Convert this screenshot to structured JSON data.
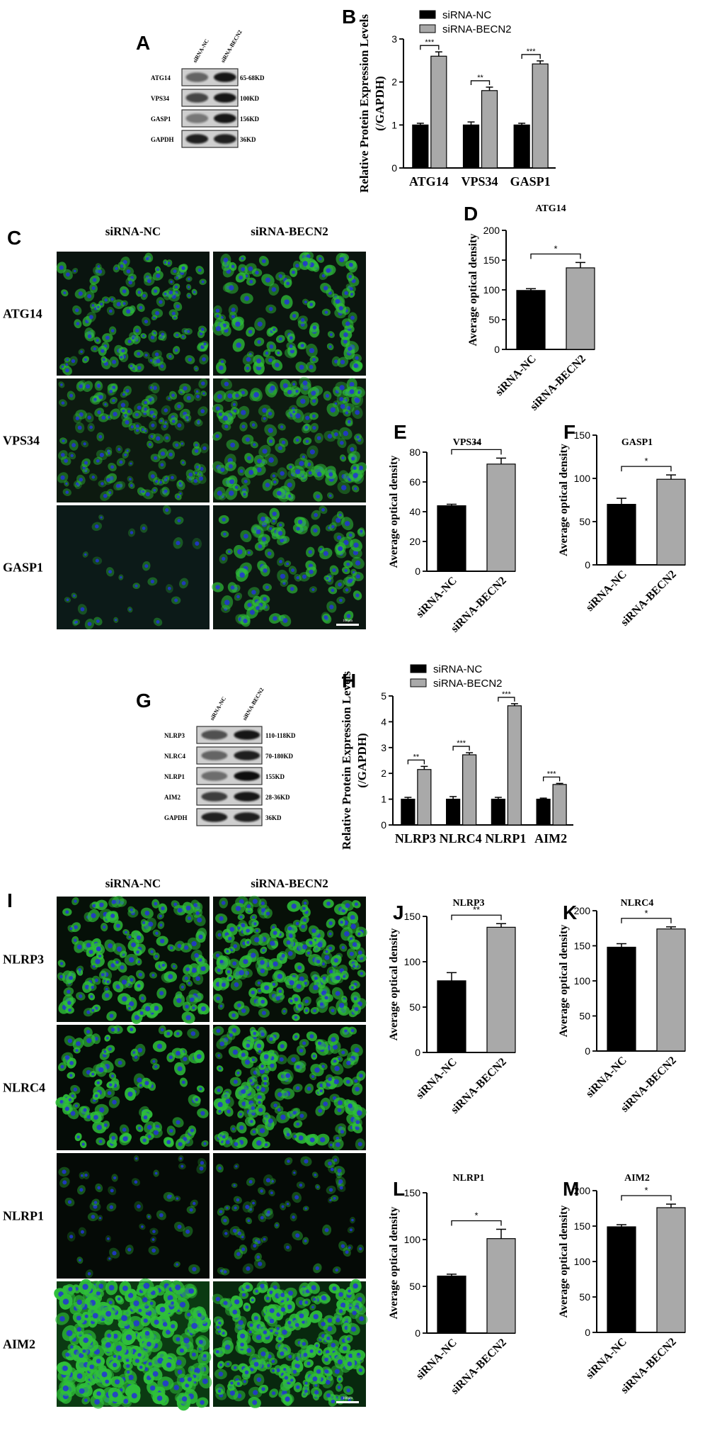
{
  "figure": {
    "panel_letters": [
      "A",
      "B",
      "C",
      "D",
      "E",
      "F",
      "G",
      "H",
      "I",
      "J",
      "K",
      "L",
      "M"
    ],
    "blot_A": {
      "lanes": [
        "siRNA-NC",
        "siRNA-BECN2"
      ],
      "rows": [
        {
          "label": "ATG14",
          "size": "65-68KD"
        },
        {
          "label": "VPS34",
          "size": "100KD"
        },
        {
          "label": "GASP1",
          "size": "156KD"
        },
        {
          "label": "GAPDH",
          "size": "36KD"
        }
      ]
    },
    "blot_G": {
      "lanes": [
        "siRNA-NC",
        "siRNA-BECN2"
      ],
      "rows": [
        {
          "label": "NLRP3",
          "size": "110-118KD"
        },
        {
          "label": "NLRC4",
          "size": "70-180KD"
        },
        {
          "label": "NLRP1",
          "size": "155KD"
        },
        {
          "label": "AIM2",
          "size": "28-36KD"
        },
        {
          "label": "GAPDH",
          "size": "36KD"
        }
      ]
    },
    "micro_C": {
      "cols": [
        "siRNA-NC",
        "siRNA-BECN2"
      ],
      "rows": [
        "ATG14",
        "VPS34",
        "GASP1"
      ],
      "scale": "100μm"
    },
    "micro_I": {
      "cols": [
        "siRNA-NC",
        "siRNA-BECN2"
      ],
      "rows": [
        "NLRP3",
        "NLRC4",
        "NLRP1",
        "AIM2"
      ],
      "scale": "100μm"
    }
  },
  "colors": {
    "nc": "#000000",
    "becn2": "#a9a9a9",
    "green": "#2fbf3a",
    "blue": "#2233d8"
  },
  "chart_data": [
    {
      "id": "B",
      "type": "bar",
      "categories": [
        "ATG14",
        "VPS34",
        "GASP1"
      ],
      "series": [
        {
          "name": "siRNA-NC",
          "values": [
            1.0,
            1.0,
            1.0
          ],
          "errors": [
            0.04,
            0.07,
            0.04
          ]
        },
        {
          "name": "siRNA-BECN2",
          "values": [
            2.6,
            1.8,
            2.42
          ],
          "errors": [
            0.1,
            0.08,
            0.07
          ]
        }
      ],
      "sig": [
        "***",
        "**",
        "***"
      ],
      "ylabel": "Relative Protein Expression Levels (/GAPDH)",
      "ylim": [
        0,
        3
      ],
      "yticks": [
        0,
        1,
        2,
        3
      ],
      "legend": "top-left"
    },
    {
      "id": "H",
      "type": "bar",
      "categories": [
        "NLRP3",
        "NLRC4",
        "NLRP1",
        "AIM2"
      ],
      "series": [
        {
          "name": "siRNA-NC",
          "values": [
            1.0,
            1.0,
            1.0,
            1.0
          ],
          "errors": [
            0.07,
            0.1,
            0.07,
            0.04
          ]
        },
        {
          "name": "siRNA-BECN2",
          "values": [
            2.15,
            2.72,
            4.62,
            1.57
          ],
          "errors": [
            0.12,
            0.08,
            0.08,
            0.04
          ]
        }
      ],
      "sig": [
        "**",
        "***",
        "***",
        "***"
      ],
      "ylabel": "Relative Protein Expression Levels (/GAPDH)",
      "ylim": [
        0,
        5
      ],
      "yticks": [
        0,
        1,
        2,
        3,
        4,
        5
      ],
      "legend": "top-left"
    },
    {
      "id": "D",
      "type": "bar",
      "title": "ATG14",
      "categories": [
        "siRNA-NC",
        "siRNA-BECN2"
      ],
      "values": [
        99,
        137
      ],
      "errors": [
        3,
        9
      ],
      "sig": "*",
      "ylabel": "Average optical density",
      "ylim": [
        0,
        200
      ],
      "yticks": [
        0,
        50,
        100,
        150,
        200
      ]
    },
    {
      "id": "E",
      "type": "bar",
      "title": "VPS34",
      "categories": [
        "siRNA-NC",
        "siRNA-BECN2"
      ],
      "values": [
        44,
        72
      ],
      "errors": [
        1,
        4
      ],
      "sig": "**",
      "ylabel": "Average optical density",
      "ylim": [
        0,
        80
      ],
      "yticks": [
        0,
        20,
        40,
        60,
        80
      ]
    },
    {
      "id": "F",
      "type": "bar",
      "title": "GASP1",
      "categories": [
        "siRNA-NC",
        "siRNA-BECN2"
      ],
      "values": [
        70,
        99
      ],
      "errors": [
        7,
        5
      ],
      "sig": "*",
      "ylabel": "Average optical density",
      "ylim": [
        0,
        150
      ],
      "yticks": [
        0,
        50,
        100,
        150
      ]
    },
    {
      "id": "J",
      "type": "bar",
      "title": "NLRP3",
      "categories": [
        "siRNA-NC",
        "siRNA-BECN2"
      ],
      "values": [
        79,
        138
      ],
      "errors": [
        9,
        4
      ],
      "sig": "**",
      "ylabel": "Average optical density",
      "ylim": [
        0,
        150
      ],
      "yticks": [
        0,
        50,
        100,
        150
      ]
    },
    {
      "id": "K",
      "type": "bar",
      "title": "NLRC4",
      "categories": [
        "siRNA-NC",
        "siRNA-BECN2"
      ],
      "values": [
        148,
        174
      ],
      "errors": [
        5,
        3
      ],
      "sig": "*",
      "ylabel": "Average optical density",
      "ylim": [
        0,
        200
      ],
      "yticks": [
        0,
        50,
        100,
        150,
        200
      ]
    },
    {
      "id": "L",
      "type": "bar",
      "title": "NLRP1",
      "categories": [
        "siRNA-NC",
        "siRNA-BECN2"
      ],
      "values": [
        61,
        101
      ],
      "errors": [
        2,
        10
      ],
      "sig": "*",
      "ylabel": "Average optical density",
      "ylim": [
        0,
        150
      ],
      "yticks": [
        0,
        50,
        100,
        150
      ]
    },
    {
      "id": "M",
      "type": "bar",
      "title": "AIM2",
      "categories": [
        "siRNA-NC",
        "siRNA-BECN2"
      ],
      "values": [
        149,
        176
      ],
      "errors": [
        3,
        5
      ],
      "sig": "*",
      "ylabel": "Average optical density",
      "ylim": [
        0,
        200
      ],
      "yticks": [
        0,
        50,
        100,
        150,
        200
      ]
    }
  ]
}
